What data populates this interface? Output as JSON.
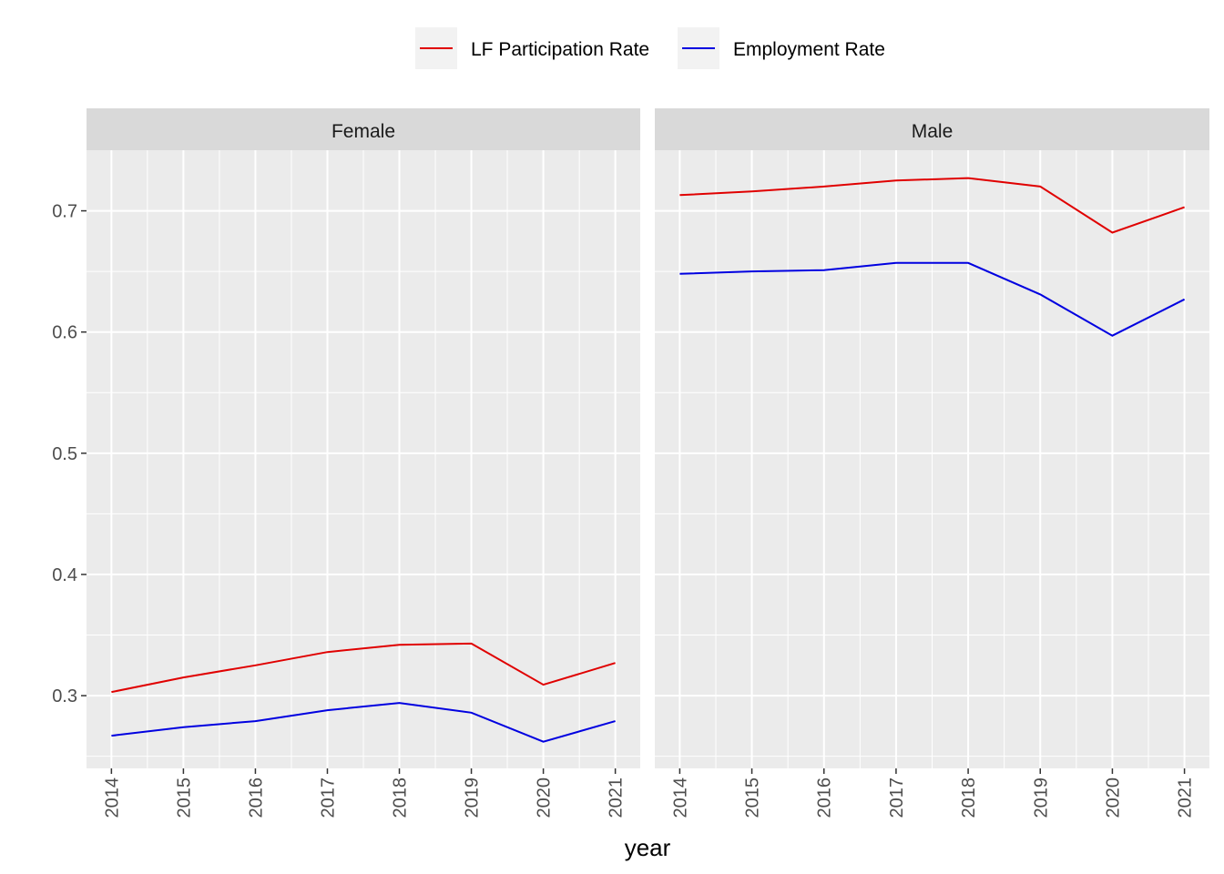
{
  "chart_data": {
    "type": "line",
    "xlabel": "year",
    "ylabel": "",
    "x": [
      2014,
      2015,
      2016,
      2017,
      2018,
      2019,
      2020,
      2021
    ],
    "ylim": [
      0.24,
      0.75
    ],
    "yticks": [
      0.3,
      0.4,
      0.5,
      0.6,
      0.7
    ],
    "ytick_labels": [
      "0.3",
      "0.4",
      "0.5",
      "0.6",
      "0.7"
    ],
    "xtick_labels": [
      "2014",
      "2015",
      "2016",
      "2017",
      "2018",
      "2019",
      "2020",
      "2021"
    ],
    "grid": true,
    "legend_position": "top",
    "legend": [
      {
        "name": "LF Participation Rate",
        "color": "#e00000"
      },
      {
        "name": "Employment Rate",
        "color": "#0000e0"
      }
    ],
    "panels": [
      {
        "label": "Female",
        "series": [
          {
            "name": "LF Participation Rate",
            "color": "#e00000",
            "values": [
              0.303,
              0.315,
              0.325,
              0.336,
              0.342,
              0.343,
              0.309,
              0.327
            ]
          },
          {
            "name": "Employment Rate",
            "color": "#0000e0",
            "values": [
              0.267,
              0.274,
              0.279,
              0.288,
              0.294,
              0.286,
              0.262,
              0.279
            ]
          }
        ]
      },
      {
        "label": "Male",
        "series": [
          {
            "name": "LF Participation Rate",
            "color": "#e00000",
            "values": [
              0.713,
              0.716,
              0.72,
              0.725,
              0.727,
              0.72,
              0.682,
              0.703
            ]
          },
          {
            "name": "Employment Rate",
            "color": "#0000e0",
            "values": [
              0.648,
              0.65,
              0.651,
              0.657,
              0.657,
              0.631,
              0.597,
              0.627
            ]
          }
        ]
      }
    ]
  }
}
